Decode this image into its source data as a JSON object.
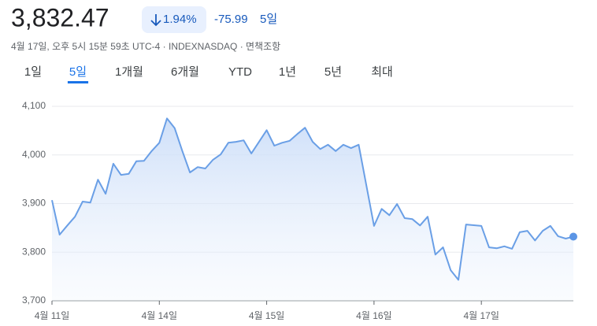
{
  "header": {
    "price": "3,832.47",
    "change_percent": "1.94%",
    "change": "-75.99",
    "period": "5일",
    "meta": "4월 17일, 오후 5시 15분 59초 UTC-4 · INDEXNASDAQ · 면책조항"
  },
  "tabs": [
    "1일",
    "5일",
    "1개월",
    "6개월",
    "YTD",
    "1년",
    "5년",
    "최대"
  ],
  "selected_tab": 1,
  "chart_data": {
    "type": "line",
    "color": "#6a9fe6",
    "grid": true,
    "x": [
      0,
      1,
      2,
      3,
      4,
      5,
      6,
      7,
      8,
      9,
      10,
      11,
      12,
      13,
      14,
      15,
      16,
      17,
      18,
      19,
      20,
      21,
      22,
      23,
      24,
      25,
      26,
      27,
      28,
      29,
      30,
      31,
      32,
      33,
      34,
      35,
      36,
      37,
      38,
      39,
      40,
      42,
      43,
      44,
      45,
      46,
      47,
      48,
      49,
      50,
      51,
      52,
      53,
      54,
      56,
      57,
      58,
      59,
      60,
      61,
      62,
      63,
      64,
      65,
      66,
      67,
      68
    ],
    "values": [
      3907,
      3836,
      3855,
      3873,
      3904,
      3902,
      3949,
      3920,
      3982,
      3959,
      3961,
      3987,
      3988,
      4008,
      4025,
      4075,
      4055,
      4008,
      3964,
      3975,
      3972,
      3990,
      4001,
      4025,
      4027,
      4030,
      4003,
      4027,
      4051,
      4019,
      4025,
      4029,
      4043,
      4056,
      4027,
      4012,
      4021,
      4008,
      4021,
      4014,
      4021,
      3854,
      3889,
      3876,
      3899,
      3870,
      3868,
      3855,
      3873,
      3795,
      3810,
      3763,
      3743,
      3857,
      3854,
      3810,
      3808,
      3812,
      3807,
      3841,
      3844,
      3824,
      3844,
      3854,
      3833,
      3828,
      3832
    ],
    "xlim": [
      0,
      68
    ],
    "xticks": [
      {
        "value": 0,
        "label": "4월 11일"
      },
      {
        "value": 14,
        "label": "4월 14일"
      },
      {
        "value": 28,
        "label": "4월 15일"
      },
      {
        "value": 42,
        "label": "4월 16일"
      },
      {
        "value": 56,
        "label": "4월 17일"
      }
    ],
    "ylim": [
      3700,
      4100
    ],
    "yticks": [
      {
        "value": 3700,
        "label": "3,700"
      },
      {
        "value": 3800,
        "label": "3,800"
      },
      {
        "value": 3900,
        "label": "3,900"
      },
      {
        "value": 4000,
        "label": "4,000"
      },
      {
        "value": 4100,
        "label": "4,100"
      }
    ]
  }
}
